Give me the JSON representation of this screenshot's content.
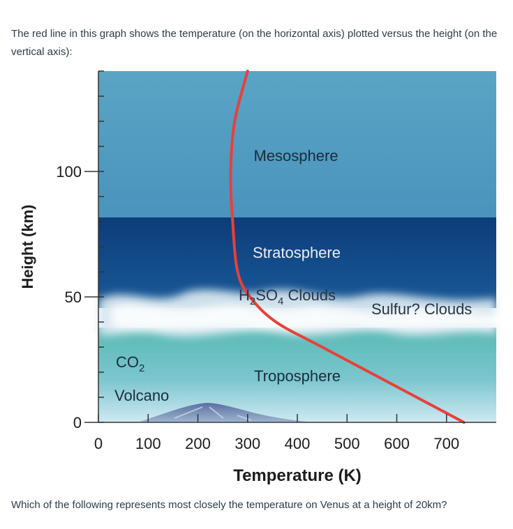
{
  "question": {
    "intro": "The red line in this graph shows the temperature (on the horizontal axis) plotted versus the height (on the vertical axis):",
    "prompt": "Which of the following represents most closely the temperature on Venus at a height of 20km?"
  },
  "chart_data": {
    "type": "line",
    "xlabel": "Temperature (K)",
    "ylabel": "Height (km)",
    "xlim": [
      0,
      800
    ],
    "ylim": [
      0,
      140
    ],
    "xticks": [
      0,
      100,
      200,
      300,
      400,
      500,
      600,
      700
    ],
    "yticks": [
      0,
      50,
      100
    ],
    "series": [
      {
        "color": "#e8403a",
        "x": [
          735,
          640,
          545,
          450,
          357,
          305,
          280,
          270,
          266,
          274,
          300
        ],
        "y": [
          0,
          10,
          20,
          30,
          40,
          50,
          60,
          80,
          100,
          120,
          140
        ]
      }
    ],
    "regions": [
      {
        "label": "Mesosphere",
        "color": "#5ea7c7"
      },
      {
        "label": "Stratosphere",
        "color": "#0f3f7e"
      },
      {
        "label_parts": [
          "H",
          "2",
          "SO",
          "4",
          " Clouds"
        ]
      },
      {
        "label": "Sulfur? Clouds"
      },
      {
        "label": "Troposphere",
        "color": "#4fb3b0"
      }
    ],
    "annotations": {
      "co2_parts": [
        "CO",
        "2"
      ],
      "volcano": "Volcano"
    },
    "colors": {
      "line": "#e8403a",
      "axis": "#333333"
    }
  }
}
